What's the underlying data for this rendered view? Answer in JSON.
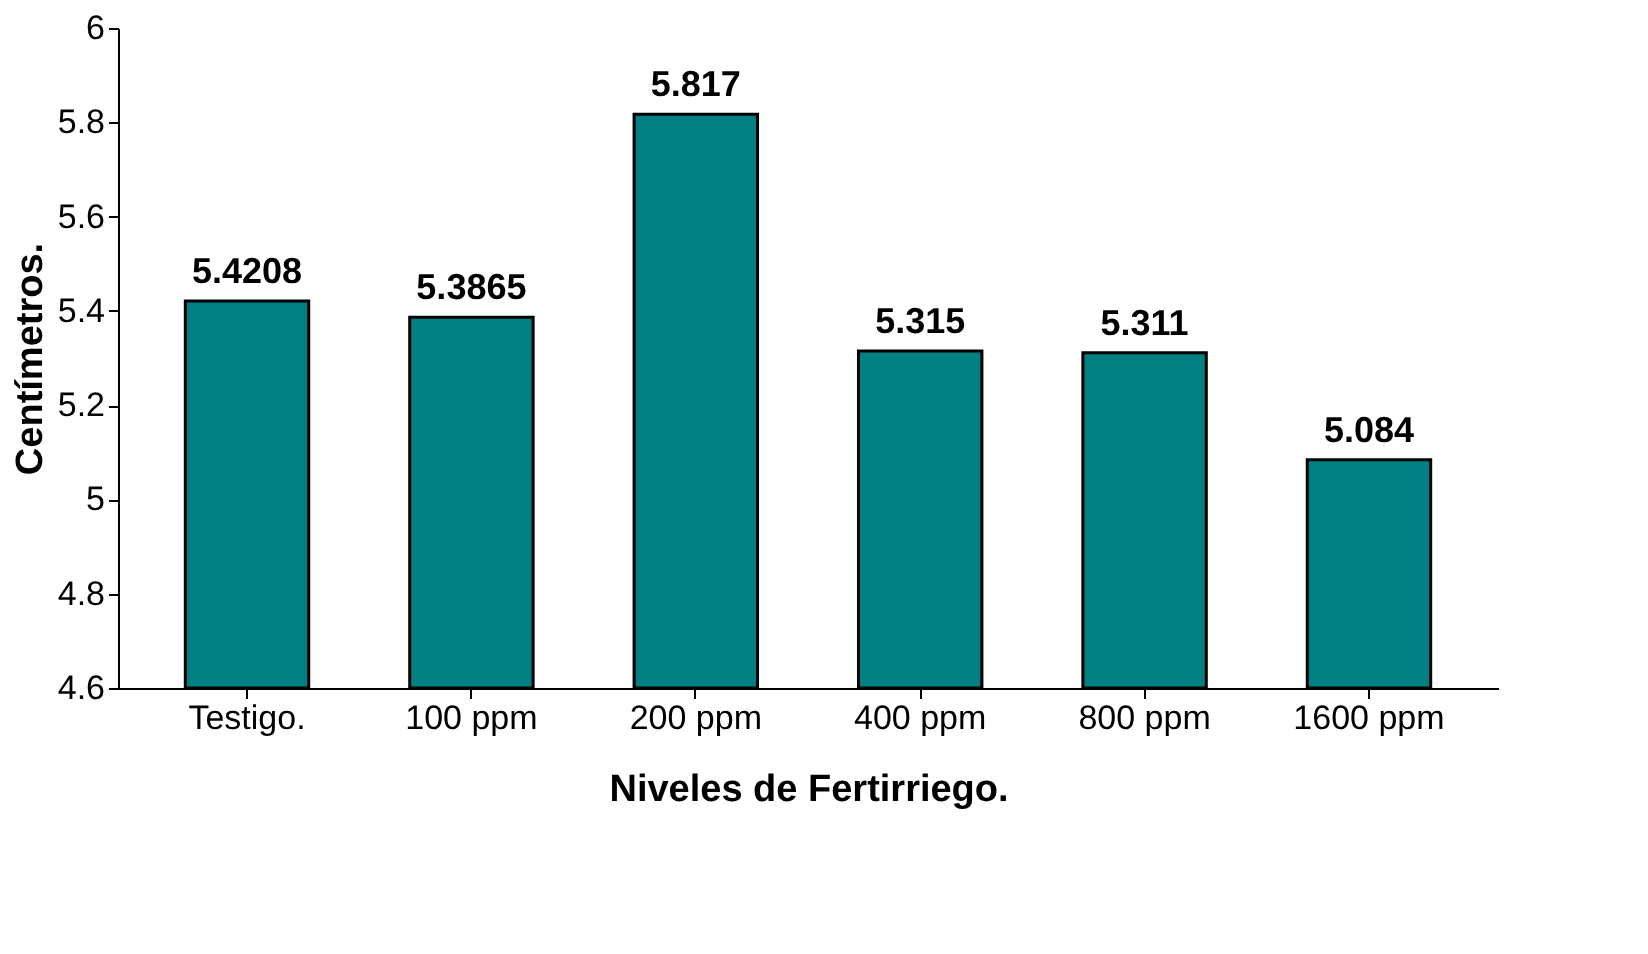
{
  "chart_data": {
    "type": "bar",
    "xlabel": "Niveles de Fertirriego.",
    "ylabel": "Centímetros.",
    "categories": [
      "Testigo.",
      "100 ppm",
      "200 ppm",
      "400 ppm",
      "800 ppm",
      "1600 ppm"
    ],
    "values": [
      5.4208,
      5.3865,
      5.817,
      5.315,
      5.311,
      5.084
    ],
    "color": "#008080",
    "ylim": [
      4.6,
      6
    ],
    "yticks": [
      4.6,
      4.8,
      5,
      5.2,
      5.4,
      5.6,
      5.8,
      6
    ],
    "data_labels": true
  }
}
